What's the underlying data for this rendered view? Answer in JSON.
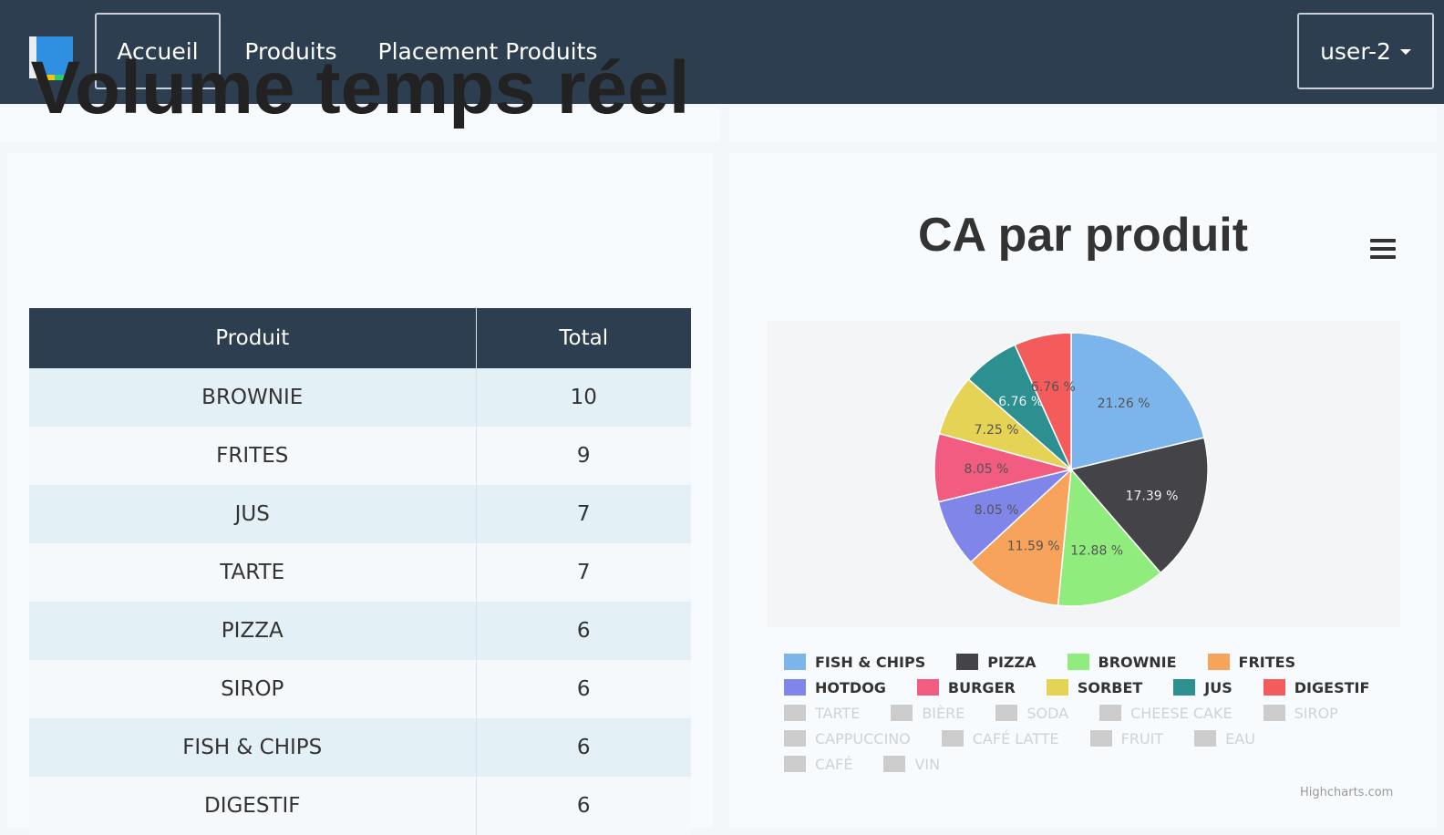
{
  "nav": {
    "items": [
      "Accueil",
      "Produits",
      "Placement Produits"
    ],
    "user": "user-2"
  },
  "volume": {
    "title": "Volume temps réel",
    "headers": [
      "Produit",
      "Total"
    ],
    "rows": [
      [
        "BROWNIE",
        "10"
      ],
      [
        "FRITES",
        "9"
      ],
      [
        "JUS",
        "7"
      ],
      [
        "TARTE",
        "7"
      ],
      [
        "PIZZA",
        "6"
      ],
      [
        "SIROP",
        "6"
      ],
      [
        "FISH & CHIPS",
        "6"
      ],
      [
        "DIGESTIF",
        "6"
      ]
    ]
  },
  "chart_data": {
    "type": "pie",
    "title": "CA par produit",
    "slices": [
      {
        "name": "FISH & CHIPS",
        "value": 21.26,
        "label": "21.26 %",
        "color": "#7cb5ec"
      },
      {
        "name": "PIZZA",
        "value": 17.39,
        "label": "17.39 %",
        "color": "#434348"
      },
      {
        "name": "BROWNIE",
        "value": 12.88,
        "label": "12.88 %",
        "color": "#90ed7d"
      },
      {
        "name": "FRITES",
        "value": 11.59,
        "label": "11.59 %",
        "color": "#f7a35c"
      },
      {
        "name": "HOTDOG",
        "value": 8.05,
        "label": "8.05 %",
        "color": "#8085e9"
      },
      {
        "name": "BURGER",
        "value": 8.05,
        "label": "8.05 %",
        "color": "#f15c80"
      },
      {
        "name": "SORBET",
        "value": 7.25,
        "label": "7.25 %",
        "color": "#e4d354"
      },
      {
        "name": "JUS",
        "value": 6.76,
        "label": "6.76 %",
        "color": "#2b908f"
      },
      {
        "name": "DIGESTIF",
        "value": 6.76,
        "label": "6.76 %",
        "color": "#f45b5b"
      }
    ],
    "legend_rows": [
      [
        {
          "name": "FISH & CHIPS",
          "color": "#7cb5ec",
          "visible": true
        },
        {
          "name": "PIZZA",
          "color": "#434348",
          "visible": true
        },
        {
          "name": "BROWNIE",
          "color": "#90ed7d",
          "visible": true
        },
        {
          "name": "FRITES",
          "color": "#f7a35c",
          "visible": true
        }
      ],
      [
        {
          "name": "HOTDOG",
          "color": "#8085e9",
          "visible": true
        },
        {
          "name": "BURGER",
          "color": "#f15c80",
          "visible": true
        },
        {
          "name": "SORBET",
          "color": "#e4d354",
          "visible": true
        },
        {
          "name": "JUS",
          "color": "#2b908f",
          "visible": true
        },
        {
          "name": "DIGESTIF",
          "color": "#f45b5b",
          "visible": true
        }
      ],
      [
        {
          "name": "TARTE",
          "color": "#cccccc",
          "visible": false
        },
        {
          "name": "BIÈRE",
          "color": "#cccccc",
          "visible": false
        },
        {
          "name": "SODA",
          "color": "#cccccc",
          "visible": false
        },
        {
          "name": "CHEESE CAKE",
          "color": "#cccccc",
          "visible": false
        },
        {
          "name": "SIROP",
          "color": "#cccccc",
          "visible": false
        }
      ],
      [
        {
          "name": "CAPPUCCINO",
          "color": "#cccccc",
          "visible": false
        },
        {
          "name": "CAFÉ LATTE",
          "color": "#cccccc",
          "visible": false
        },
        {
          "name": "FRUIT",
          "color": "#cccccc",
          "visible": false
        },
        {
          "name": "EAU",
          "color": "#cccccc",
          "visible": false
        }
      ],
      [
        {
          "name": "CAFÉ",
          "color": "#cccccc",
          "visible": false
        },
        {
          "name": "VIN",
          "color": "#cccccc",
          "visible": false
        }
      ]
    ],
    "credits": "Highcharts.com"
  },
  "colors": {
    "navbar": "#2c3e4f",
    "table_header": "#2c3e4f"
  }
}
